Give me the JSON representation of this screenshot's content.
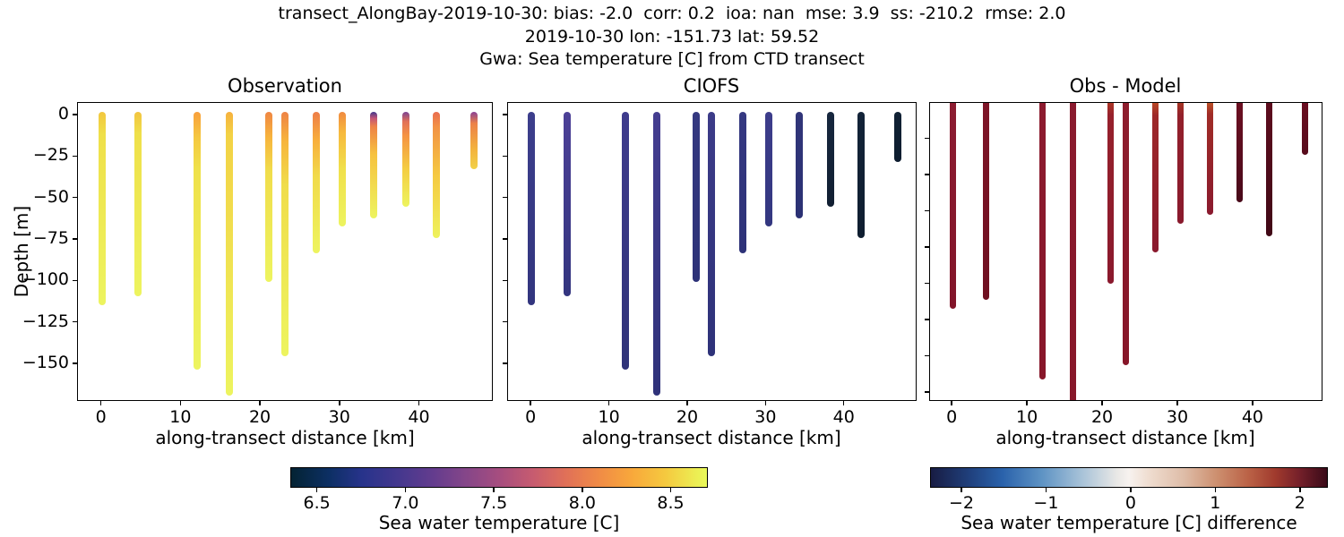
{
  "suptitle": {
    "line1": "transect_AlongBay-2019-10-30: bias: -2.0  corr: 0.2  ioa: nan  mse: 3.9  ss: -210.2  rmse: 2.0",
    "line2": "2019-10-30 lon: -151.73 lat: 59.52",
    "line3": "Gwa: Sea temperature [C] from CTD transect"
  },
  "axes": {
    "ylabel": "Depth [m]"
  },
  "chart_data": {
    "type": "scatter",
    "subtype": "CTD-cast vertical profiles colored by value",
    "xlabel": "along-transect distance [km]",
    "xlim": [
      -3,
      49.3
    ],
    "x_ticks": [
      0,
      10,
      20,
      30,
      40
    ],
    "panels": [
      {
        "title": "Observation",
        "ylim": [
          -172.7,
          7.6
        ],
        "y_ticks": [
          0,
          -25,
          -50,
          -75,
          -100,
          -125,
          -150
        ],
        "y_tick_labels": [
          "0",
          "−25",
          "−50",
          "−75",
          "−100",
          "−125",
          "−150"
        ],
        "show_y_tick_labels": true,
        "casts": [
          {
            "x": 0,
            "depth": -112,
            "stops": [
              [
                0,
                "#f2c63f"
              ],
              [
                12,
                "#efe04a"
              ],
              [
                100,
                "#edf45f"
              ]
            ]
          },
          {
            "x": 4.5,
            "depth": -107,
            "stops": [
              [
                0,
                "#f2c440"
              ],
              [
                12,
                "#efe04a"
              ],
              [
                100,
                "#edf45f"
              ]
            ]
          },
          {
            "x": 12,
            "depth": -151,
            "stops": [
              [
                0,
                "#f89f3c"
              ],
              [
                10,
                "#f5c840"
              ],
              [
                22,
                "#efe14a"
              ],
              [
                100,
                "#edf45f"
              ]
            ]
          },
          {
            "x": 16,
            "depth": -167,
            "stops": [
              [
                0,
                "#f6b13e"
              ],
              [
                8,
                "#f3d245"
              ],
              [
                100,
                "#edf45f"
              ]
            ]
          },
          {
            "x": 21,
            "depth": -98,
            "stops": [
              [
                0,
                "#ef8643"
              ],
              [
                15,
                "#f7b43d"
              ],
              [
                35,
                "#f0dd4b"
              ],
              [
                100,
                "#edf45f"
              ]
            ]
          },
          {
            "x": 23,
            "depth": -143,
            "stops": [
              [
                0,
                "#ee8345"
              ],
              [
                12,
                "#f7b53d"
              ],
              [
                30,
                "#f0dd4b"
              ],
              [
                100,
                "#edf45f"
              ]
            ]
          },
          {
            "x": 27,
            "depth": -81,
            "stops": [
              [
                0,
                "#ed7d48"
              ],
              [
                20,
                "#f8ae3c"
              ],
              [
                45,
                "#f1da4a"
              ],
              [
                100,
                "#edf45f"
              ]
            ]
          },
          {
            "x": 30.3,
            "depth": -65,
            "stops": [
              [
                0,
                "#f08a40"
              ],
              [
                18,
                "#f7b93d"
              ],
              [
                50,
                "#f0e04b"
              ],
              [
                100,
                "#edf45f"
              ]
            ]
          },
          {
            "x": 34.2,
            "depth": -60,
            "stops": [
              [
                0,
                "#41378c"
              ],
              [
                6,
                "#c35577"
              ],
              [
                14,
                "#ee8347"
              ],
              [
                40,
                "#f6c23f"
              ],
              [
                100,
                "#edf45f"
              ]
            ]
          },
          {
            "x": 38.2,
            "depth": -53,
            "stops": [
              [
                0,
                "#7b4292"
              ],
              [
                10,
                "#e17058"
              ],
              [
                25,
                "#f59343"
              ],
              [
                60,
                "#f4cd42"
              ],
              [
                100,
                "#edf45f"
              ]
            ]
          },
          {
            "x": 42.1,
            "depth": -72,
            "stops": [
              [
                0,
                "#e96d4f"
              ],
              [
                12,
                "#f29245"
              ],
              [
                50,
                "#f5c941"
              ],
              [
                100,
                "#eef25c"
              ]
            ]
          },
          {
            "x": 46.8,
            "depth": -30,
            "stops": [
              [
                0,
                "#8a4095"
              ],
              [
                20,
                "#ec8149"
              ],
              [
                65,
                "#f3b23e"
              ],
              [
                100,
                "#f2d148"
              ]
            ]
          }
        ]
      },
      {
        "title": "CIOFS",
        "ylim": [
          -172.7,
          7.6
        ],
        "y_ticks": [
          0,
          -25,
          -50,
          -75,
          -100,
          -125,
          -150
        ],
        "y_tick_labels": [],
        "show_y_tick_labels": false,
        "casts": [
          {
            "x": 0,
            "depth": -112,
            "stops": [
              [
                0,
                "#3c3e8c"
              ],
              [
                100,
                "#32357e"
              ]
            ]
          },
          {
            "x": 4.5,
            "depth": -107,
            "stops": [
              [
                0,
                "#4c4097"
              ],
              [
                100,
                "#33357f"
              ]
            ]
          },
          {
            "x": 12,
            "depth": -151,
            "stops": [
              [
                0,
                "#3e3b8d"
              ],
              [
                100,
                "#303379"
              ]
            ]
          },
          {
            "x": 16,
            "depth": -167,
            "stops": [
              [
                0,
                "#443d90"
              ],
              [
                100,
                "#2f327a"
              ]
            ]
          },
          {
            "x": 21,
            "depth": -98,
            "stops": [
              [
                0,
                "#343880"
              ],
              [
                100,
                "#2d3278"
              ]
            ]
          },
          {
            "x": 23,
            "depth": -143,
            "stops": [
              [
                0,
                "#3c3b88"
              ],
              [
                100,
                "#2e3279"
              ]
            ]
          },
          {
            "x": 27,
            "depth": -81,
            "stops": [
              [
                0,
                "#353881"
              ],
              [
                100,
                "#2d3278"
              ]
            ]
          },
          {
            "x": 30.3,
            "depth": -65,
            "stops": [
              [
                0,
                "#3d3d8b"
              ],
              [
                100,
                "#333780"
              ]
            ]
          },
          {
            "x": 34.2,
            "depth": -60,
            "stops": [
              [
                0,
                "#313579"
              ],
              [
                100,
                "#2b3174"
              ]
            ]
          },
          {
            "x": 38.2,
            "depth": -53,
            "stops": [
              [
                0,
                "#17273e"
              ],
              [
                100,
                "#111f32"
              ]
            ]
          },
          {
            "x": 42.1,
            "depth": -72,
            "stops": [
              [
                0,
                "#132338"
              ],
              [
                100,
                "#0f1e30"
              ]
            ]
          },
          {
            "x": 46.8,
            "depth": -26,
            "stops": [
              [
                0,
                "#102134"
              ],
              [
                100,
                "#0e1d2f"
              ]
            ]
          }
        ]
      },
      {
        "title": "Obs - Model",
        "ylim": [
          -165,
          0
        ],
        "y_ticks": [
          -20,
          -40,
          -60,
          -80,
          -100,
          -120,
          -140,
          -160
        ],
        "y_tick_labels": [],
        "show_y_tick_labels": false,
        "clip_caps": true,
        "casts": [
          {
            "x": 0,
            "depth": -112,
            "stops": [
              [
                0,
                "#8c1c31"
              ],
              [
                100,
                "#821429"
              ]
            ]
          },
          {
            "x": 4.5,
            "depth": -107,
            "stops": [
              [
                0,
                "#7e1527"
              ],
              [
                100,
                "#6f1021"
              ]
            ]
          },
          {
            "x": 12,
            "depth": -151,
            "stops": [
              [
                0,
                "#8c1b2f"
              ],
              [
                100,
                "#871629"
              ]
            ]
          },
          {
            "x": 16,
            "depth": -167,
            "stops": [
              [
                0,
                "#8a1a2e"
              ],
              [
                100,
                "#871729"
              ]
            ]
          },
          {
            "x": 21,
            "depth": -98,
            "stops": [
              [
                0,
                "#b23b24"
              ],
              [
                8,
                "#96212c"
              ],
              [
                100,
                "#8a192d"
              ]
            ]
          },
          {
            "x": 23,
            "depth": -143,
            "stops": [
              [
                0,
                "#8e1d2d"
              ],
              [
                100,
                "#871629"
              ]
            ]
          },
          {
            "x": 27,
            "depth": -81,
            "stops": [
              [
                0,
                "#c04f26"
              ],
              [
                10,
                "#9d2829"
              ],
              [
                100,
                "#8a192d"
              ]
            ]
          },
          {
            "x": 30.3,
            "depth": -65,
            "stops": [
              [
                0,
                "#aa3a22"
              ],
              [
                12,
                "#93202b"
              ],
              [
                100,
                "#891a2d"
              ]
            ]
          },
          {
            "x": 34.2,
            "depth": -60,
            "stops": [
              [
                0,
                "#c25a28"
              ],
              [
                12,
                "#a02c27"
              ],
              [
                100,
                "#8a1a2e"
              ]
            ]
          },
          {
            "x": 38.2,
            "depth": -53,
            "stops": [
              [
                0,
                "#6d1022"
              ],
              [
                100,
                "#48091a"
              ]
            ]
          },
          {
            "x": 42.1,
            "depth": -72,
            "stops": [
              [
                0,
                "#5e0d1e"
              ],
              [
                100,
                "#400816"
              ]
            ]
          },
          {
            "x": 46.8,
            "depth": -27,
            "stops": [
              [
                0,
                "#6b0e20"
              ],
              [
                100,
                "#570b1c"
              ]
            ]
          }
        ]
      }
    ],
    "colorbars": [
      {
        "label": "Sea water temperature [C]",
        "vmin": 6.35,
        "vmax": 8.71,
        "ticks": [
          6.5,
          7.0,
          7.5,
          8.0,
          8.5
        ],
        "tick_labels": [
          "6.5",
          "7.0",
          "7.5",
          "8.0",
          "8.5"
        ],
        "gradient": [
          [
            0,
            "#042333"
          ],
          [
            9,
            "#0c2f63"
          ],
          [
            17,
            "#27338b"
          ],
          [
            26,
            "#45388e"
          ],
          [
            34,
            "#633c8e"
          ],
          [
            42,
            "#854689"
          ],
          [
            50,
            "#a64d7f"
          ],
          [
            58,
            "#c65b70"
          ],
          [
            66,
            "#e07058"
          ],
          [
            74,
            "#f08b46"
          ],
          [
            82,
            "#f8a83b"
          ],
          [
            90,
            "#f5c93f"
          ],
          [
            100,
            "#e9fa5a"
          ]
        ]
      },
      {
        "label": "Sea water temperature [C] difference",
        "vmin": -2.37,
        "vmax": 2.33,
        "ticks": [
          -2,
          -1,
          0,
          1,
          2
        ],
        "tick_labels": [
          "−2",
          "−1",
          "0",
          "1",
          "2"
        ],
        "gradient": [
          [
            0,
            "#181c43"
          ],
          [
            10,
            "#20417e"
          ],
          [
            18,
            "#2a62ab"
          ],
          [
            28,
            "#5e93c4"
          ],
          [
            38,
            "#a7c2d8"
          ],
          [
            47,
            "#e9e8e6"
          ],
          [
            50,
            "#f7f2ef"
          ],
          [
            55,
            "#efddd0"
          ],
          [
            64,
            "#debca7"
          ],
          [
            72,
            "#cd9070"
          ],
          [
            80,
            "#bb6347"
          ],
          [
            87,
            "#a03a2d"
          ],
          [
            93,
            "#75202a"
          ],
          [
            100,
            "#390a18"
          ]
        ]
      }
    ]
  }
}
